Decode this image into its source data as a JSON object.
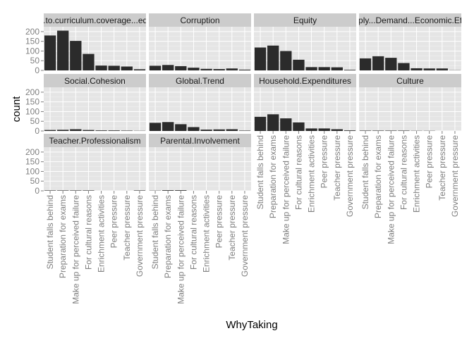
{
  "chart_data": {
    "type": "bar",
    "xlabel": "WhyTaking",
    "ylabel": "count",
    "ylim": [
      0,
      225
    ],
    "yticks": [
      0,
      50,
      100,
      150,
      200
    ],
    "categories": [
      "Student falls behind",
      "Preparation for exams",
      "Make up for perceived failure",
      "For cultural reasons",
      "Enrichment activities",
      "Peer pressure",
      "Teacher pressure",
      "Government pressure"
    ],
    "facets": [
      {
        "name": "...ated.to.curriculum.coverage...ed..quali",
        "values": [
          180,
          205,
          152,
          85,
          25,
          24,
          20,
          6
        ]
      },
      {
        "name": "Corruption",
        "values": [
          24,
          28,
          22,
          14,
          8,
          7,
          10,
          4
        ]
      },
      {
        "name": "Equity",
        "values": [
          118,
          128,
          100,
          55,
          17,
          17,
          16,
          3
        ]
      },
      {
        "name": "Supply...Demand...Economic.Efficie",
        "values": [
          62,
          73,
          65,
          38,
          11,
          10,
          10,
          1
        ]
      },
      {
        "name": "Social.Cohesion",
        "values": [
          5,
          6,
          9,
          5,
          3,
          3,
          2,
          1
        ]
      },
      {
        "name": "Global.Trend",
        "values": [
          42,
          46,
          35,
          20,
          7,
          8,
          9,
          2
        ]
      },
      {
        "name": "Household.Expenditures",
        "values": [
          73,
          86,
          65,
          44,
          13,
          13,
          9,
          3
        ]
      },
      {
        "name": "Culture",
        "values": [
          2,
          2,
          2,
          2,
          1,
          1,
          0,
          0
        ]
      },
      {
        "name": "Teacher.Professionalism",
        "values": [
          2,
          2,
          2,
          2,
          0,
          0,
          0,
          2
        ]
      },
      {
        "name": "Parental.Involvement",
        "values": [
          1,
          3,
          3,
          0,
          0,
          0,
          0,
          0
        ]
      }
    ],
    "grid": true,
    "legend": "none"
  }
}
